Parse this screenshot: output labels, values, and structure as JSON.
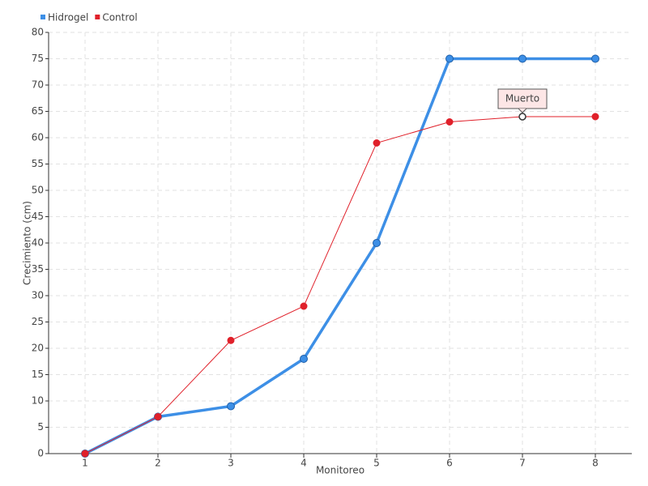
{
  "chart_data": {
    "type": "line",
    "x": [
      1,
      2,
      3,
      4,
      5,
      6,
      7,
      8
    ],
    "xlim": [
      0.5,
      8.5
    ],
    "xticks": [
      1,
      2,
      3,
      4,
      5,
      6,
      7,
      8
    ],
    "ylim": [
      0,
      80
    ],
    "yticks": [
      0,
      5,
      10,
      15,
      20,
      25,
      30,
      35,
      40,
      45,
      50,
      55,
      60,
      65,
      70,
      75,
      80
    ],
    "xlabel": "Monitoreo",
    "ylabel": "Crecimiento (cm)",
    "grid": true,
    "legend": "top-left",
    "series": [
      {
        "name": "Hidrogel",
        "color": "#3d8fe6",
        "values": [
          0,
          7,
          9,
          18,
          40,
          75,
          75,
          75
        ]
      },
      {
        "name": "Control",
        "color": "#e0202a",
        "values": [
          0,
          7,
          21.5,
          28,
          59,
          63,
          64,
          64
        ]
      }
    ],
    "annotations": [
      {
        "text": "Muerto",
        "series": 1,
        "index": 6
      }
    ]
  }
}
